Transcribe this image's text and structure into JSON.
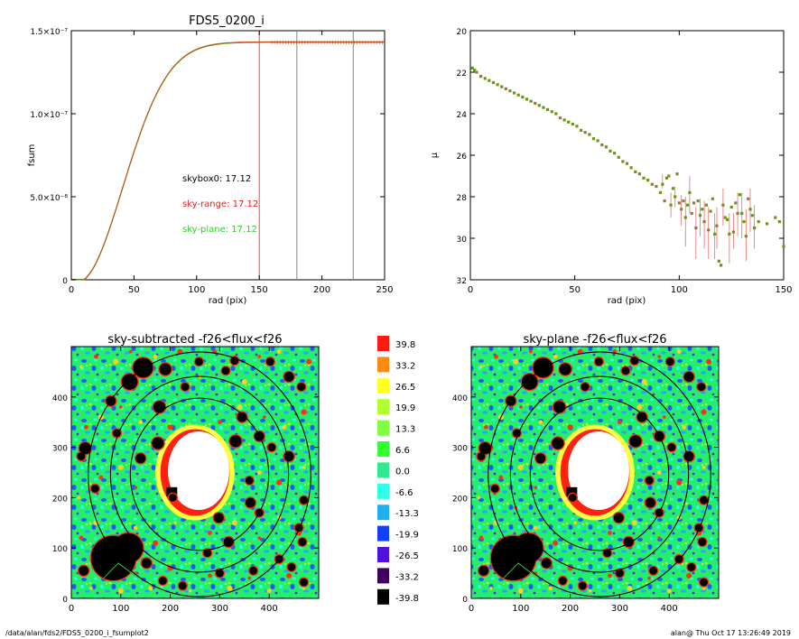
{
  "footer": {
    "path": "/data/alan/fds2/FDS5_0200_i_fsumplot2",
    "user_stamp": "alan@  Thu Oct 17 13:26:49 2019"
  },
  "chart_data": [
    {
      "id": "fsum_profile",
      "type": "line",
      "title": "FDS5_0200_i",
      "xlabel": "rad (pix)",
      "ylabel": "fsum",
      "xlim": [
        0,
        250
      ],
      "ylim": [
        0,
        1.5e-07
      ],
      "xticks": [
        {
          "v": 0,
          "label": "0"
        },
        {
          "v": 50,
          "label": "50"
        },
        {
          "v": 100,
          "label": "100"
        },
        {
          "v": 150,
          "label": "150"
        },
        {
          "v": 200,
          "label": "200"
        },
        {
          "v": 250,
          "label": "250"
        }
      ],
      "yticks": [
        {
          "v": 0,
          "label": "0"
        },
        {
          "v": 5e-08,
          "label": "5.0×10⁻⁸"
        },
        {
          "v": 1e-07,
          "label": "1.0×10⁻⁷"
        },
        {
          "v": 1.5e-07,
          "label": "1.5×10⁻⁷"
        }
      ],
      "curve_asymptote": 1.43e-07,
      "curve_scale_radius": 38,
      "curve_colors": [
        "#7a9a1a",
        "#d03a1a"
      ],
      "vlines": [
        {
          "x": 150,
          "color": "#e05050"
        },
        {
          "x": 180,
          "color": "#888888"
        },
        {
          "x": 225,
          "color": "#888888"
        }
      ],
      "annotations": [
        {
          "text": "skybox0: 17.12",
          "color": "#000000"
        },
        {
          "text": "sky-range: 17.12",
          "color": "#e02020"
        },
        {
          "text": "sky-plane: 17.12",
          "color": "#33cc33"
        }
      ]
    },
    {
      "id": "mu_profile",
      "type": "scatter",
      "title": "",
      "xlabel": "rad (pix)",
      "ylabel": "μ",
      "xlim": [
        0,
        150
      ],
      "ylim": [
        20,
        32
      ],
      "y_inverted": true,
      "xticks": [
        {
          "v": 0,
          "label": "0"
        },
        {
          "v": 50,
          "label": "50"
        },
        {
          "v": 100,
          "label": "100"
        },
        {
          "v": 150,
          "label": "150"
        }
      ],
      "yticks": [
        {
          "v": 20,
          "label": "20"
        },
        {
          "v": 22,
          "label": "22"
        },
        {
          "v": 24,
          "label": "24"
        },
        {
          "v": 26,
          "label": "26"
        },
        {
          "v": 28,
          "label": "28"
        },
        {
          "v": 30,
          "label": "30"
        },
        {
          "v": 32,
          "label": "32"
        }
      ],
      "point_colors": [
        "#6a9a1a",
        "#d05030"
      ],
      "points": [
        [
          1,
          21.8
        ],
        [
          2,
          21.9
        ],
        [
          3,
          22.0
        ],
        [
          5,
          22.2
        ],
        [
          7,
          22.3
        ],
        [
          9,
          22.4
        ],
        [
          11,
          22.5
        ],
        [
          13,
          22.6
        ],
        [
          15,
          22.7
        ],
        [
          17,
          22.8
        ],
        [
          19,
          22.9
        ],
        [
          21,
          23.0
        ],
        [
          23,
          23.1
        ],
        [
          25,
          23.2
        ],
        [
          27,
          23.3
        ],
        [
          29,
          23.4
        ],
        [
          31,
          23.5
        ],
        [
          33,
          23.6
        ],
        [
          35,
          23.7
        ],
        [
          37,
          23.8
        ],
        [
          39,
          23.9
        ],
        [
          41,
          24.0
        ],
        [
          43,
          24.2
        ],
        [
          45,
          24.3
        ],
        [
          47,
          24.4
        ],
        [
          49,
          24.5
        ],
        [
          51,
          24.6
        ],
        [
          53,
          24.8
        ],
        [
          55,
          24.9
        ],
        [
          57,
          25.0
        ],
        [
          59,
          25.2
        ],
        [
          61,
          25.3
        ],
        [
          63,
          25.5
        ],
        [
          65,
          25.6
        ],
        [
          67,
          25.8
        ],
        [
          69,
          25.9
        ],
        [
          71,
          26.1
        ],
        [
          73,
          26.3
        ],
        [
          75,
          26.4
        ],
        [
          77,
          26.6
        ],
        [
          79,
          26.8
        ],
        [
          81,
          26.9
        ],
        [
          83,
          27.1
        ],
        [
          85,
          27.2
        ],
        [
          87,
          27.4
        ],
        [
          89,
          27.5
        ],
        [
          91,
          27.8
        ],
        [
          92,
          27.4
        ],
        [
          93,
          28.2
        ],
        [
          94,
          27.1
        ],
        [
          95,
          27.0
        ],
        [
          96,
          28.4
        ],
        [
          97,
          27.6
        ],
        [
          98,
          28.0
        ],
        [
          99,
          26.9
        ],
        [
          100,
          28.3
        ],
        [
          101,
          28.6
        ],
        [
          102,
          28.2
        ],
        [
          103,
          29.0
        ],
        [
          104,
          28.4
        ],
        [
          105,
          27.8
        ],
        [
          106,
          28.8
        ],
        [
          107,
          28.3
        ],
        [
          108,
          29.5
        ],
        [
          109,
          28.2
        ],
        [
          110,
          28.9
        ],
        [
          111,
          28.6
        ],
        [
          112,
          29.2
        ],
        [
          113,
          28.4
        ],
        [
          114,
          29.6
        ],
        [
          115,
          28.7
        ],
        [
          116,
          28.1
        ],
        [
          117,
          29.8
        ],
        [
          118,
          29.4
        ],
        [
          119,
          31.1
        ],
        [
          120,
          31.3
        ],
        [
          121,
          28.4
        ],
        [
          122,
          29.0
        ],
        [
          123,
          29.1
        ],
        [
          124,
          29.8
        ],
        [
          125,
          28.5
        ],
        [
          126,
          29.7
        ],
        [
          127,
          28.3
        ],
        [
          128,
          28.8
        ],
        [
          129,
          27.9
        ],
        [
          130,
          28.8
        ],
        [
          131,
          29.2
        ],
        [
          132,
          29.9
        ],
        [
          133,
          28.1
        ],
        [
          134,
          28.6
        ],
        [
          135,
          28.9
        ],
        [
          136,
          29.5
        ],
        [
          138,
          29.2
        ],
        [
          142,
          29.3
        ],
        [
          146,
          29.0
        ],
        [
          148,
          29.2
        ],
        [
          150,
          30.4
        ]
      ],
      "error_bars": [
        [
          92,
          26.9,
          27.6
        ],
        [
          96,
          27.8,
          29.0
        ],
        [
          98,
          27.5,
          28.5
        ],
        [
          101,
          27.9,
          29.4
        ],
        [
          103,
          28.0,
          30.4
        ],
        [
          105,
          27.0,
          28.8
        ],
        [
          108,
          28.5,
          31.0
        ],
        [
          110,
          28.1,
          29.9
        ],
        [
          112,
          28.2,
          30.5
        ],
        [
          114,
          28.5,
          31.0
        ],
        [
          117,
          28.8,
          31.0
        ],
        [
          118,
          28.5,
          30.5
        ],
        [
          121,
          27.6,
          29.4
        ],
        [
          124,
          28.8,
          31.2
        ],
        [
          126,
          28.8,
          30.5
        ],
        [
          128,
          27.8,
          29.9
        ],
        [
          130,
          27.8,
          30.0
        ],
        [
          132,
          28.6,
          31.1
        ],
        [
          134,
          27.6,
          29.7
        ],
        [
          136,
          28.4,
          30.5
        ]
      ]
    },
    {
      "id": "sky_subtracted_map",
      "type": "heatmap",
      "title": "sky-subtracted -f26<flux<f26",
      "xlim": [
        0,
        500
      ],
      "ylim": [
        0,
        500
      ],
      "xticks": [
        {
          "v": 0,
          "label": "0"
        },
        {
          "v": 100,
          "label": "100"
        },
        {
          "v": 200,
          "label": "200"
        },
        {
          "v": 300,
          "label": "300"
        },
        {
          "v": 400,
          "label": "400"
        }
      ],
      "yticks": [
        {
          "v": 0,
          "label": "0"
        },
        {
          "v": 100,
          "label": "100"
        },
        {
          "v": 200,
          "label": "200"
        },
        {
          "v": 300,
          "label": "300"
        },
        {
          "v": 400,
          "label": "400"
        }
      ],
      "center": [
        250,
        250
      ],
      "ellipse_radii": [
        140,
        180,
        225
      ]
    },
    {
      "id": "sky_plane_map",
      "type": "heatmap",
      "title": "sky-plane -f26<flux<f26",
      "xlim": [
        0,
        500
      ],
      "ylim": [
        0,
        500
      ],
      "xticks": [
        {
          "v": 0,
          "label": "0"
        },
        {
          "v": 100,
          "label": "100"
        },
        {
          "v": 200,
          "label": "200"
        },
        {
          "v": 300,
          "label": "300"
        },
        {
          "v": 400,
          "label": "400"
        }
      ],
      "yticks": [
        {
          "v": 0,
          "label": "0"
        },
        {
          "v": 100,
          "label": "100"
        },
        {
          "v": 200,
          "label": "200"
        },
        {
          "v": 300,
          "label": "300"
        },
        {
          "v": 400,
          "label": "400"
        }
      ],
      "center": [
        250,
        250
      ],
      "ellipse_radii": [
        140,
        180,
        225
      ]
    }
  ],
  "colorbar": {
    "levels": [
      {
        "label": "39.8",
        "color": "#ff1a10"
      },
      {
        "label": "33.2",
        "color": "#ff8a10"
      },
      {
        "label": "26.5",
        "color": "#ffff20"
      },
      {
        "label": "19.9",
        "color": "#b0ff30"
      },
      {
        "label": "13.3",
        "color": "#80ff40"
      },
      {
        "label": "6.6",
        "color": "#30ff30"
      },
      {
        "label": "0.0",
        "color": "#30e890"
      },
      {
        "label": "-6.6",
        "color": "#30ffe8"
      },
      {
        "label": "-13.3",
        "color": "#20b0f0"
      },
      {
        "label": "-19.9",
        "color": "#1040ff"
      },
      {
        "label": "-26.5",
        "color": "#5010e0"
      },
      {
        "label": "-33.2",
        "color": "#400060"
      },
      {
        "label": "-39.8",
        "color": "#000000"
      }
    ]
  },
  "sources": [
    [
      118,
      430,
      16
    ],
    [
      145,
      458,
      20
    ],
    [
      190,
      455,
      12
    ],
    [
      178,
      380,
      12
    ],
    [
      230,
      420,
      8
    ],
    [
      258,
      470,
      8
    ],
    [
      312,
      452,
      8
    ],
    [
      330,
      472,
      8
    ],
    [
      345,
      360,
      10
    ],
    [
      402,
      470,
      8
    ],
    [
      440,
      440,
      10
    ],
    [
      465,
      420,
      8
    ],
    [
      28,
      298,
      12
    ],
    [
      20,
      282,
      8
    ],
    [
      80,
      392,
      10
    ],
    [
      48,
      218,
      8
    ],
    [
      92,
      328,
      8
    ],
    [
      175,
      308,
      12
    ],
    [
      140,
      278,
      10
    ],
    [
      332,
      312,
      12
    ],
    [
      380,
      322,
      10
    ],
    [
      405,
      300,
      8
    ],
    [
      440,
      282,
      10
    ],
    [
      360,
      234,
      8
    ],
    [
      362,
      190,
      10
    ],
    [
      380,
      170,
      8
    ],
    [
      460,
      140,
      8
    ],
    [
      470,
      195,
      8
    ],
    [
      298,
      160,
      10
    ],
    [
      318,
      112,
      10
    ],
    [
      275,
      90,
      8
    ],
    [
      152,
      70,
      10
    ],
    [
      185,
      35,
      8
    ],
    [
      225,
      25,
      8
    ],
    [
      300,
      50,
      8
    ],
    [
      368,
      55,
      8
    ],
    [
      420,
      78,
      8
    ],
    [
      445,
      62,
      8
    ],
    [
      467,
      112,
      8
    ],
    [
      470,
      32,
      8
    ],
    [
      205,
      200,
      8
    ],
    [
      85,
      80,
      45
    ],
    [
      115,
      100,
      30
    ],
    [
      60,
      70,
      15
    ],
    [
      25,
      55,
      10
    ]
  ],
  "speckles": [
    [
      40,
      20
    ],
    [
      70,
      40
    ],
    [
      100,
      15
    ],
    [
      130,
      50
    ],
    [
      160,
      20
    ],
    [
      200,
      60
    ],
    [
      240,
      15
    ],
    [
      280,
      45
    ],
    [
      320,
      20
    ],
    [
      360,
      40
    ],
    [
      400,
      15
    ],
    [
      440,
      45
    ],
    [
      470,
      20
    ],
    [
      20,
      120
    ],
    [
      50,
      150
    ],
    [
      90,
      180
    ],
    [
      130,
      140
    ],
    [
      170,
      110
    ],
    [
      210,
      150
    ],
    [
      280,
      130
    ],
    [
      330,
      150
    ],
    [
      380,
      120
    ],
    [
      420,
      160
    ],
    [
      460,
      130
    ],
    [
      15,
      200
    ],
    [
      60,
      240
    ],
    [
      100,
      260
    ],
    [
      130,
      220
    ],
    [
      380,
      250
    ],
    [
      420,
      230
    ],
    [
      470,
      260
    ],
    [
      30,
      340
    ],
    [
      60,
      360
    ],
    [
      100,
      380
    ],
    [
      140,
      350
    ],
    [
      200,
      340
    ],
    [
      250,
      330
    ],
    [
      300,
      350
    ],
    [
      340,
      380
    ],
    [
      390,
      360
    ],
    [
      430,
      340
    ],
    [
      470,
      370
    ],
    [
      20,
      460
    ],
    [
      50,
      480
    ],
    [
      90,
      470
    ],
    [
      120,
      490
    ],
    [
      170,
      480
    ],
    [
      220,
      490
    ],
    [
      260,
      440
    ],
    [
      290,
      490
    ],
    [
      350,
      430
    ],
    [
      380,
      480
    ],
    [
      420,
      490
    ],
    [
      480,
      470
    ]
  ]
}
